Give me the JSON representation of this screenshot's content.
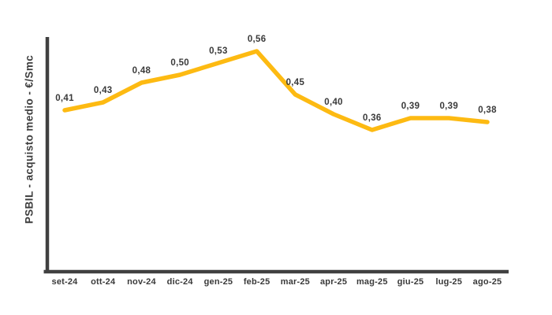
{
  "colors": {
    "background": "#FFFFFF",
    "axis": "#404040",
    "text": "#3A3A3A",
    "line": "#FDBA12"
  },
  "chart_data": {
    "type": "line",
    "title": "",
    "xlabel": "",
    "ylabel": "PSBIL - acquisto medio - €/Smc",
    "categories": [
      "set-24",
      "ott-24",
      "nov-24",
      "dic-24",
      "gen-25",
      "feb-25",
      "mar-25",
      "apr-25",
      "mag-25",
      "giu-25",
      "lug-25",
      "ago-25"
    ],
    "values": [
      0.41,
      0.43,
      0.48,
      0.5,
      0.53,
      0.56,
      0.45,
      0.4,
      0.36,
      0.39,
      0.39,
      0.38
    ],
    "value_labels": [
      "0,41",
      "0,43",
      "0,48",
      "0,50",
      "0,53",
      "0,56",
      "0,45",
      "0,40",
      "0,36",
      "0,39",
      "0,39",
      "0,38"
    ],
    "ylim": [
      0,
      0.6
    ],
    "grid": false,
    "legend": false,
    "decimal_separator": ","
  }
}
